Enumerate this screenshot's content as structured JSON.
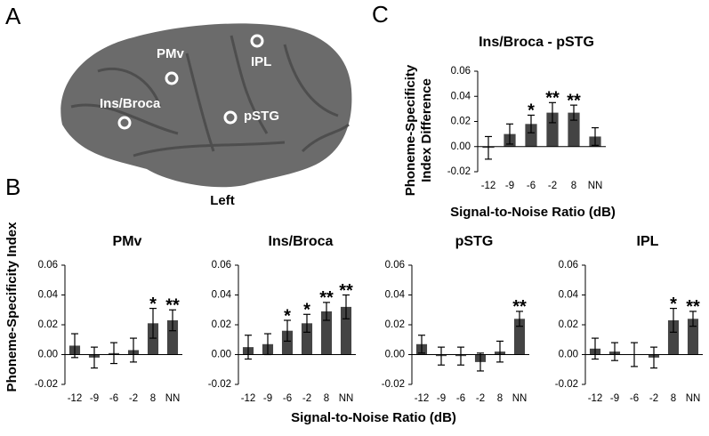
{
  "panels": [
    "A",
    "B",
    "C"
  ],
  "brain": {
    "labels": [
      "PMv",
      "IPL",
      "Ins/Broca",
      "pSTG"
    ],
    "hemisphere": "Left"
  },
  "panel_b": {
    "ylabel": "Phoneme-Specificity Index",
    "xlabel": "Signal-to-Noise Ratio (dB)"
  },
  "chart_data": [
    {
      "type": "bar",
      "title": "Ins/Broca - pSTG",
      "ylabel": [
        "Phoneme-Specificity",
        "Index Difference"
      ],
      "xlabel": "Signal-to-Noise Ratio (dB)",
      "categories": [
        "-12",
        "-9",
        "-6",
        "-2",
        "8",
        "NN"
      ],
      "values": [
        -0.001,
        0.01,
        0.018,
        0.027,
        0.027,
        0.008
      ],
      "errors": [
        0.009,
        0.008,
        0.007,
        0.008,
        0.006,
        0.007
      ],
      "significance": [
        null,
        null,
        "*",
        "**",
        "**",
        null
      ],
      "color": "#444444",
      "ylim": [
        -0.02,
        0.06
      ],
      "yticks": [
        -0.02,
        {
          "value": 0,
          "label": "0.00"
        },
        0.02,
        0.04,
        0.06
      ]
    },
    {
      "type": "bar",
      "title": "PMv",
      "categories": [
        "-12",
        "-9",
        "-6",
        "-2",
        "8",
        "NN"
      ],
      "values": [
        0.006,
        -0.002,
        0.001,
        0.003,
        0.021,
        0.023
      ],
      "errors": [
        0.008,
        0.007,
        0.007,
        0.008,
        0.01,
        0.007
      ],
      "significance": [
        null,
        null,
        null,
        null,
        "*",
        "**"
      ],
      "color": "#444444",
      "ylim": [
        -0.02,
        0.06
      ],
      "yticks": [
        -0.02,
        {
          "value": 0,
          "label": "0.00"
        },
        0.02,
        0.04,
        0.06
      ]
    },
    {
      "type": "bar",
      "title": "Ins/Broca",
      "categories": [
        "-12",
        "-9",
        "-6",
        "-2",
        "8",
        "NN"
      ],
      "values": [
        0.005,
        0.007,
        0.016,
        0.021,
        0.029,
        0.032
      ],
      "errors": [
        0.008,
        0.007,
        0.007,
        0.006,
        0.006,
        0.008
      ],
      "significance": [
        null,
        null,
        "*",
        "*",
        "**",
        "**"
      ],
      "color": "#444444",
      "ylim": [
        -0.02,
        0.06
      ],
      "yticks": [
        -0.02,
        {
          "value": 0,
          "label": "0.00"
        },
        0.02,
        0.04,
        0.06
      ]
    },
    {
      "type": "bar",
      "title": "pSTG",
      "categories": [
        "-12",
        "-9",
        "-6",
        "-2",
        "8",
        "NN"
      ],
      "values": [
        0.007,
        -0.001,
        -0.001,
        -0.005,
        0.002,
        0.024
      ],
      "errors": [
        0.006,
        0.006,
        0.006,
        0.006,
        0.007,
        0.005
      ],
      "significance": [
        null,
        null,
        null,
        null,
        null,
        "**"
      ],
      "color": "#444444",
      "ylim": [
        -0.02,
        0.06
      ],
      "yticks": [
        -0.02,
        {
          "value": 0,
          "label": "0.00"
        },
        0.02,
        0.04,
        0.06
      ]
    },
    {
      "type": "bar",
      "title": "IPL",
      "categories": [
        "-12",
        "-9",
        "-6",
        "-2",
        "8",
        "NN"
      ],
      "values": [
        0.004,
        0.002,
        0,
        -0.002,
        0.023,
        0.024
      ],
      "errors": [
        0.007,
        0.006,
        0.008,
        0.007,
        0.008,
        0.005
      ],
      "significance": [
        null,
        null,
        null,
        null,
        "*",
        "**"
      ],
      "color": "#444444",
      "ylim": [
        -0.02,
        0.06
      ],
      "yticks": [
        -0.02,
        {
          "value": 0,
          "label": "0.00"
        },
        0.02,
        0.04,
        0.06
      ]
    }
  ]
}
